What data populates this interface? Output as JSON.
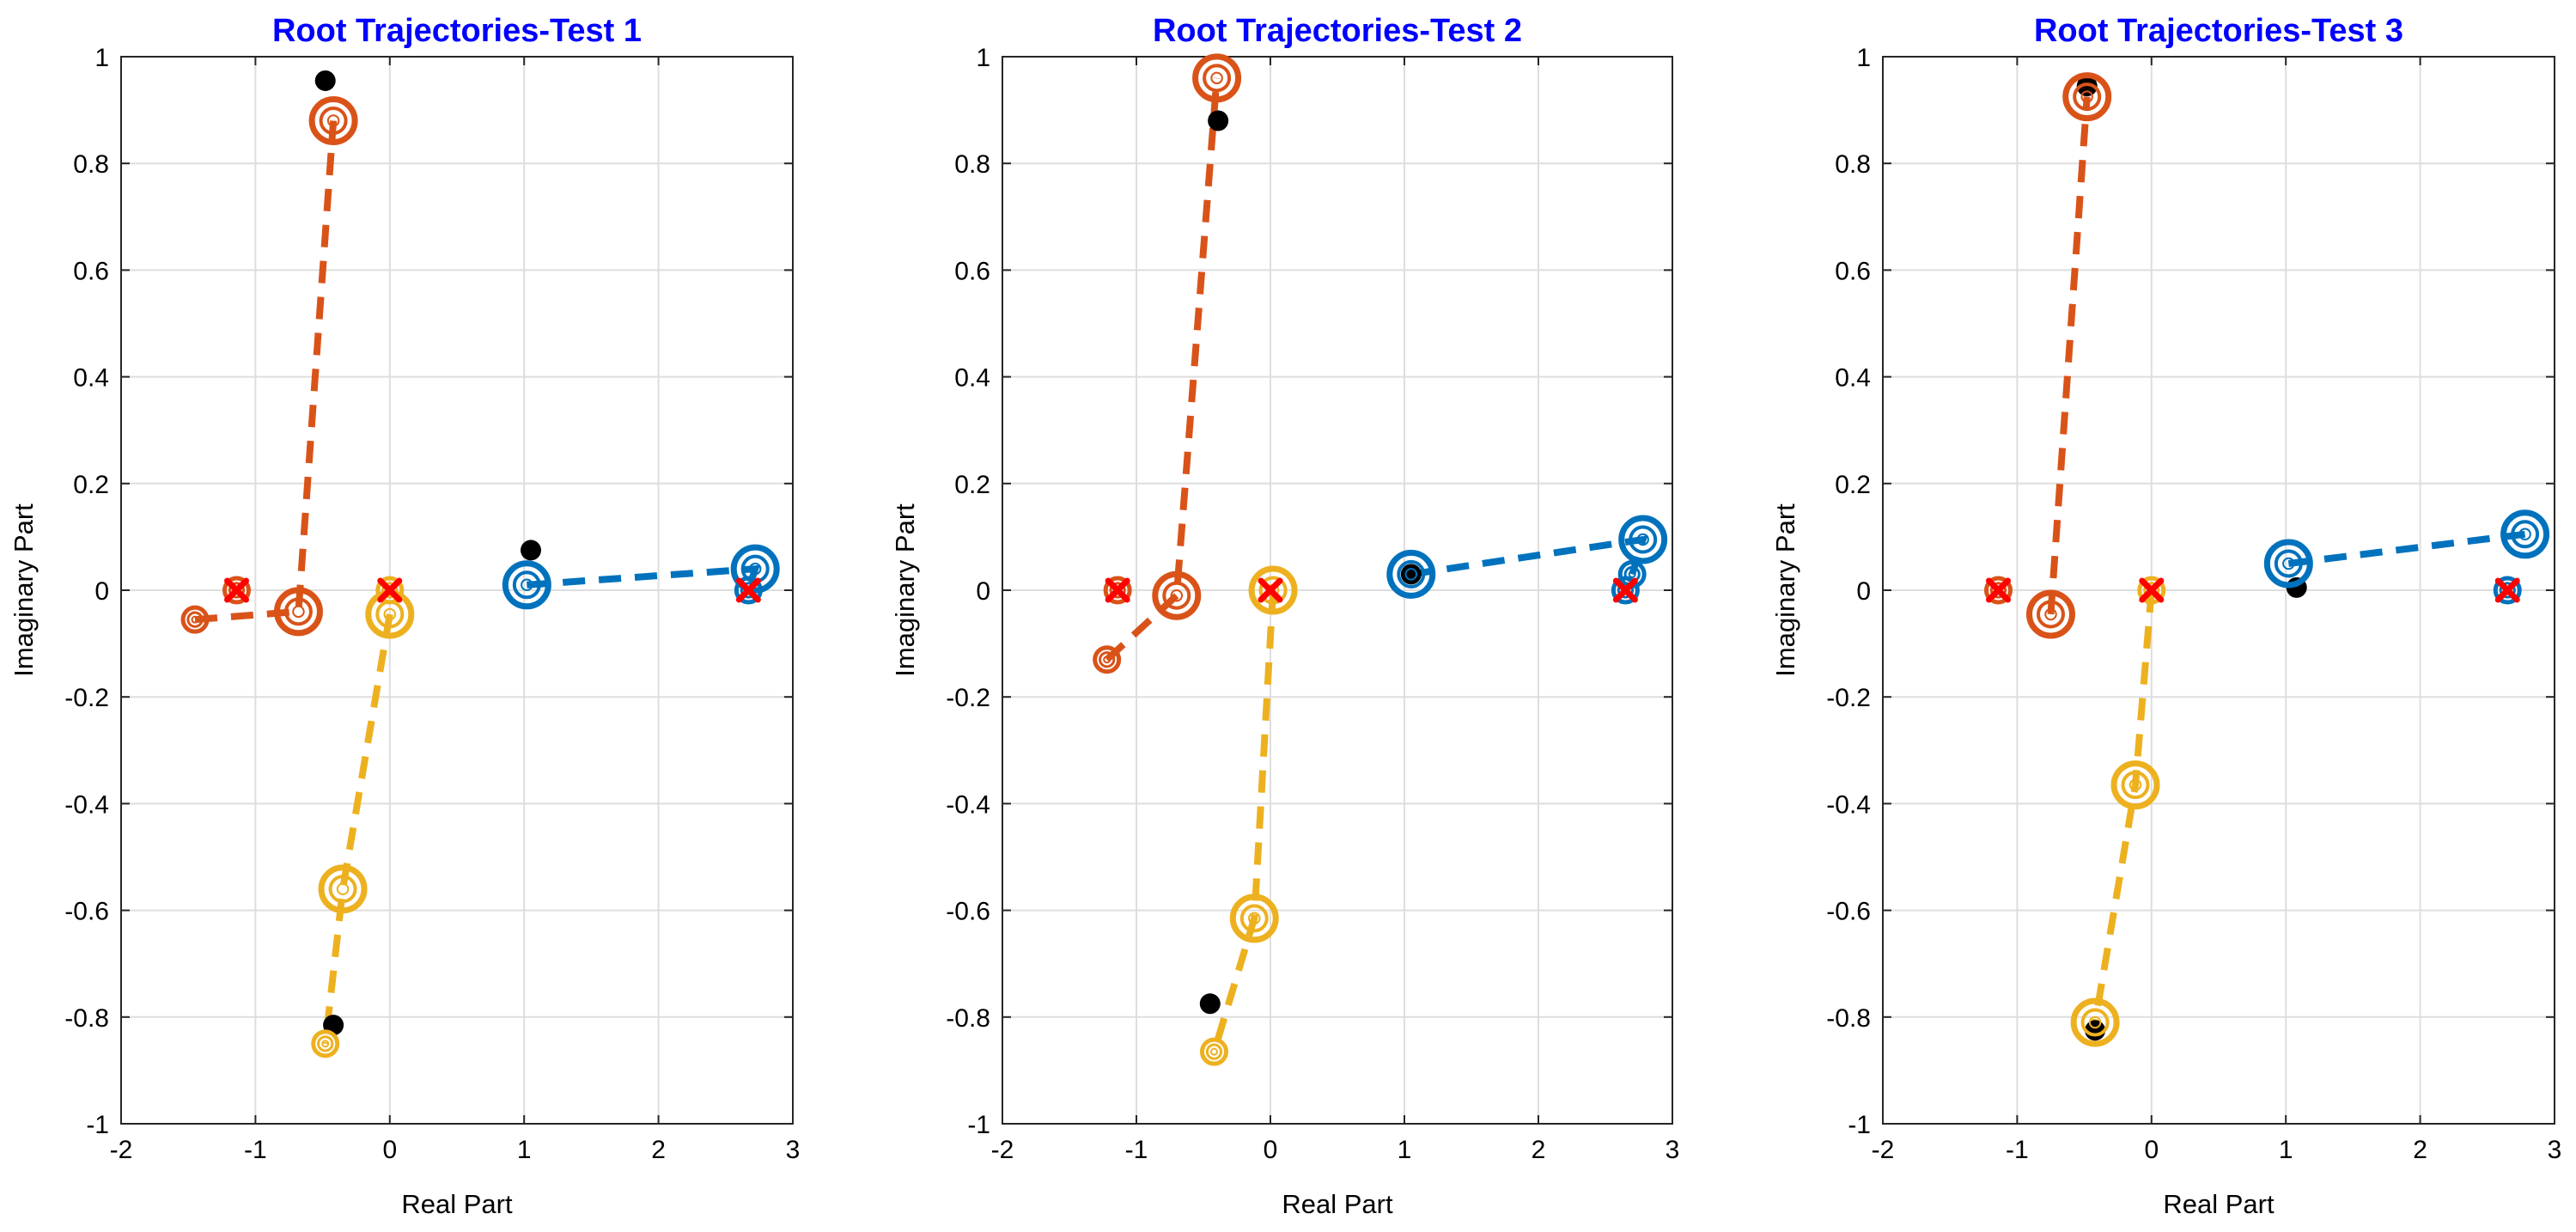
{
  "chart_data": [
    {
      "type": "scatter",
      "title": "Root Trajectories-Test 1",
      "xlabel": "Real Part",
      "ylabel": "Imaginary Part",
      "xlim": [
        -2,
        3
      ],
      "ylim": [
        -1,
        1
      ],
      "xticks": [
        -2,
        -1,
        0,
        1,
        2,
        3
      ],
      "yticks": [
        -1,
        -0.8,
        -0.6,
        -0.4,
        -0.2,
        0,
        0.2,
        0.4,
        0.6,
        0.8,
        1
      ],
      "xtick_labels": [
        "-2",
        "-1",
        "0",
        "1",
        "2",
        "3"
      ],
      "ytick_labels": [
        "-1",
        "-0.8",
        "-0.6",
        "-0.4",
        "-0.2",
        "0",
        "0.2",
        "0.4",
        "0.6",
        "0.8",
        "1"
      ],
      "grid": true,
      "trajectories": [
        {
          "name": "root-1",
          "color": "#0072BD",
          "points": [
            [
              1.02,
              0.01
            ],
            [
              2.72,
              0.04
            ],
            [
              2.67,
              0.0
            ]
          ]
        },
        {
          "name": "root-2",
          "color": "#D95319",
          "points": [
            [
              -1.45,
              -0.055
            ],
            [
              -0.68,
              -0.04
            ],
            [
              -0.42,
              0.88
            ]
          ]
        },
        {
          "name": "root-3",
          "color": "#EDB120",
          "points": [
            [
              0.0,
              -0.045
            ],
            [
              -0.35,
              -0.56
            ],
            [
              -0.48,
              -0.85
            ]
          ]
        }
      ],
      "markers": [
        {
          "color": "#D95319",
          "x": -0.42,
          "y": 0.88,
          "size": "large"
        },
        {
          "color": "#D95319",
          "x": -0.68,
          "y": -0.04,
          "size": "large"
        },
        {
          "color": "#D95319",
          "x": -1.45,
          "y": -0.055,
          "size": "small"
        },
        {
          "color": "#D95319",
          "x": -1.14,
          "y": 0.0,
          "size": "small"
        },
        {
          "color": "#EDB120",
          "x": 0.0,
          "y": -0.045,
          "size": "large"
        },
        {
          "color": "#EDB120",
          "x": -0.35,
          "y": -0.56,
          "size": "large"
        },
        {
          "color": "#EDB120",
          "x": -0.48,
          "y": -0.85,
          "size": "small"
        },
        {
          "color": "#EDB120",
          "x": 0.0,
          "y": 0.0,
          "size": "small"
        },
        {
          "color": "#0072BD",
          "x": 1.02,
          "y": 0.01,
          "size": "large"
        },
        {
          "color": "#0072BD",
          "x": 2.72,
          "y": 0.04,
          "size": "large"
        },
        {
          "color": "#0072BD",
          "x": 2.67,
          "y": 0.0,
          "size": "small"
        }
      ],
      "zeros": [
        [
          -1.14,
          0.0
        ],
        [
          0.0,
          0.0
        ],
        [
          2.67,
          0.0
        ]
      ],
      "black_points": [
        [
          -0.48,
          0.955
        ],
        [
          1.05,
          0.075
        ],
        [
          -0.42,
          -0.815
        ]
      ]
    },
    {
      "type": "scatter",
      "title": "Root Trajectories-Test 2",
      "xlabel": "Real Part",
      "ylabel": "Imaginary Part",
      "xlim": [
        -2,
        3
      ],
      "ylim": [
        -1,
        1
      ],
      "xticks": [
        -2,
        -1,
        0,
        1,
        2,
        3
      ],
      "yticks": [
        -1,
        -0.8,
        -0.6,
        -0.4,
        -0.2,
        0,
        0.2,
        0.4,
        0.6,
        0.8,
        1
      ],
      "xtick_labels": [
        "-2",
        "-1",
        "0",
        "1",
        "2",
        "3"
      ],
      "ytick_labels": [
        "-1",
        "-0.8",
        "-0.6",
        "-0.4",
        "-0.2",
        "0",
        "0.2",
        "0.4",
        "0.6",
        "0.8",
        "1"
      ],
      "grid": true,
      "trajectories": [
        {
          "name": "root-1",
          "color": "#0072BD",
          "points": [
            [
              1.05,
              0.03
            ],
            [
              2.78,
              0.095
            ],
            [
              2.7,
              0.03
            ]
          ]
        },
        {
          "name": "root-2",
          "color": "#D95319",
          "points": [
            [
              -1.22,
              -0.13
            ],
            [
              -0.7,
              -0.01
            ],
            [
              -0.4,
              0.96
            ]
          ]
        },
        {
          "name": "root-3",
          "color": "#EDB120",
          "points": [
            [
              0.02,
              0.0
            ],
            [
              -0.12,
              -0.615
            ],
            [
              -0.42,
              -0.865
            ]
          ]
        }
      ],
      "markers": [
        {
          "color": "#D95319",
          "x": -0.4,
          "y": 0.96,
          "size": "large"
        },
        {
          "color": "#D95319",
          "x": -0.7,
          "y": -0.01,
          "size": "large"
        },
        {
          "color": "#D95319",
          "x": -1.22,
          "y": -0.13,
          "size": "small"
        },
        {
          "color": "#D95319",
          "x": -1.14,
          "y": 0.0,
          "size": "small"
        },
        {
          "color": "#EDB120",
          "x": 0.02,
          "y": 0.0,
          "size": "large"
        },
        {
          "color": "#EDB120",
          "x": -0.12,
          "y": -0.615,
          "size": "large"
        },
        {
          "color": "#EDB120",
          "x": -0.42,
          "y": -0.865,
          "size": "small"
        },
        {
          "color": "#0072BD",
          "x": 1.05,
          "y": 0.03,
          "size": "large"
        },
        {
          "color": "#0072BD",
          "x": 2.78,
          "y": 0.095,
          "size": "large"
        },
        {
          "color": "#0072BD",
          "x": 2.7,
          "y": 0.03,
          "size": "small"
        },
        {
          "color": "#0072BD",
          "x": 2.65,
          "y": 0.0,
          "size": "small"
        }
      ],
      "zeros": [
        [
          -1.14,
          0.0
        ],
        [
          0.0,
          0.0
        ],
        [
          2.65,
          0.0
        ]
      ],
      "black_points": [
        [
          -0.39,
          0.88
        ],
        [
          1.05,
          0.03
        ],
        [
          -0.45,
          -0.775
        ]
      ]
    },
    {
      "type": "scatter",
      "title": "Root Trajectories-Test 3",
      "xlabel": "Real Part",
      "ylabel": "Imaginary Part",
      "xlim": [
        -2,
        3
      ],
      "ylim": [
        -1,
        1
      ],
      "xticks": [
        -2,
        -1,
        0,
        1,
        2,
        3
      ],
      "yticks": [
        -1,
        -0.8,
        -0.6,
        -0.4,
        -0.2,
        0,
        0.2,
        0.4,
        0.6,
        0.8,
        1
      ],
      "xtick_labels": [
        "-2",
        "-1",
        "0",
        "1",
        "2",
        "3"
      ],
      "ytick_labels": [
        "-1",
        "-0.8",
        "-0.6",
        "-0.4",
        "-0.2",
        "0",
        "0.2",
        "0.4",
        "0.6",
        "0.8",
        "1"
      ],
      "grid": true,
      "trajectories": [
        {
          "name": "root-1",
          "color": "#0072BD",
          "points": [
            [
              1.02,
              0.05
            ],
            [
              2.78,
              0.105
            ]
          ]
        },
        {
          "name": "root-2",
          "color": "#D95319",
          "points": [
            [
              -0.75,
              -0.045
            ],
            [
              -0.48,
              0.925
            ]
          ]
        },
        {
          "name": "root-3",
          "color": "#EDB120",
          "points": [
            [
              0.0,
              0.0
            ],
            [
              -0.12,
              -0.365
            ],
            [
              -0.42,
              -0.81
            ]
          ]
        }
      ],
      "markers": [
        {
          "color": "#D95319",
          "x": -0.48,
          "y": 0.925,
          "size": "large"
        },
        {
          "color": "#D95319",
          "x": -0.75,
          "y": -0.045,
          "size": "large"
        },
        {
          "color": "#D95319",
          "x": -1.14,
          "y": 0.0,
          "size": "small"
        },
        {
          "color": "#EDB120",
          "x": 0.0,
          "y": 0.0,
          "size": "small"
        },
        {
          "color": "#EDB120",
          "x": -0.12,
          "y": -0.365,
          "size": "large"
        },
        {
          "color": "#EDB120",
          "x": -0.42,
          "y": -0.81,
          "size": "large"
        },
        {
          "color": "#0072BD",
          "x": 1.02,
          "y": 0.05,
          "size": "large"
        },
        {
          "color": "#0072BD",
          "x": 2.78,
          "y": 0.105,
          "size": "large"
        },
        {
          "color": "#0072BD",
          "x": 2.65,
          "y": 0.0,
          "size": "small"
        }
      ],
      "zeros": [
        [
          -1.14,
          0.0
        ],
        [
          0.0,
          0.0
        ],
        [
          2.65,
          0.0
        ]
      ],
      "black_points": [
        [
          -0.48,
          0.945
        ],
        [
          1.08,
          0.005
        ],
        [
          -0.42,
          -0.825
        ]
      ]
    }
  ]
}
